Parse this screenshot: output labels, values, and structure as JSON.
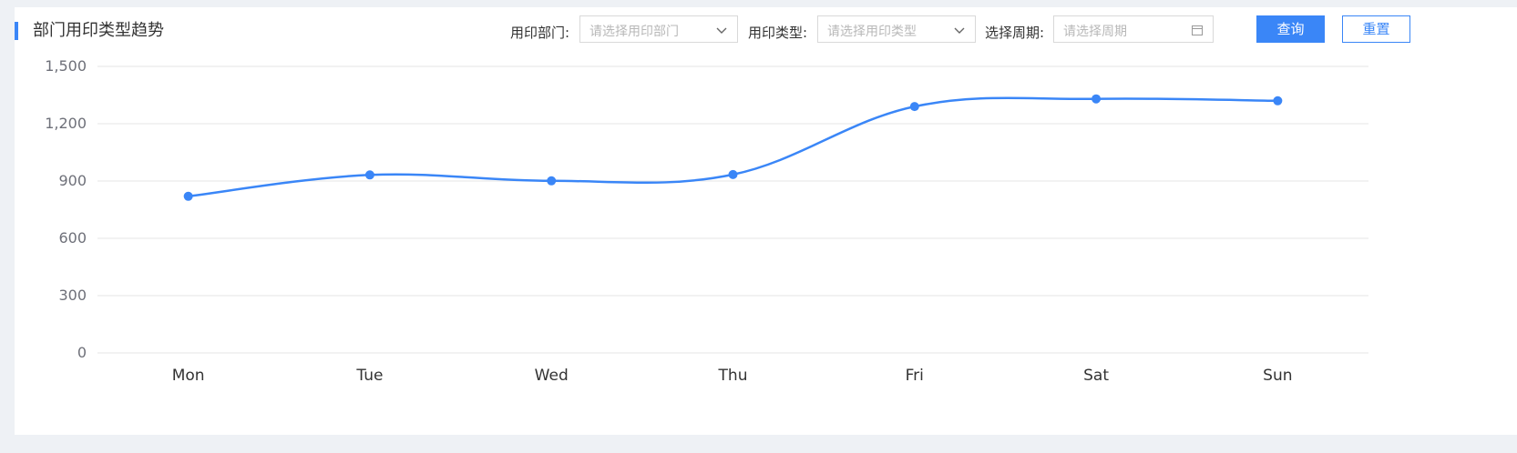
{
  "header": {
    "title": "部门用印类型趋势"
  },
  "filters": {
    "dept_label": "用印部门:",
    "dept_placeholder": "请选择用印部门",
    "type_label": "用印类型:",
    "type_placeholder": "请选择用印类型",
    "period_label": "选择周期:",
    "period_placeholder": "请选择周期"
  },
  "buttons": {
    "query": "查询",
    "reset": "重置"
  },
  "colors": {
    "accent": "#3a86f7",
    "grid": "#e6e6e6",
    "axis_text": "#6e7079"
  },
  "icons": {
    "dept_dropdown": "chevron-down-icon",
    "type_dropdown": "chevron-down-icon",
    "period_picker": "calendar-icon"
  },
  "chart_data": {
    "type": "line",
    "smooth": true,
    "categories": [
      "Mon",
      "Tue",
      "Wed",
      "Thu",
      "Fri",
      "Sat",
      "Sun"
    ],
    "series": [
      {
        "values": [
          820,
          932,
          901,
          934,
          1290,
          1330,
          1320
        ]
      }
    ],
    "ylim": [
      0,
      1500
    ],
    "yticks": [
      0,
      300,
      600,
      900,
      1200,
      1500
    ],
    "ytick_labels": [
      "0",
      "300",
      "600",
      "900",
      "1,200",
      "1,500"
    ],
    "grid": true,
    "legend": "none"
  }
}
